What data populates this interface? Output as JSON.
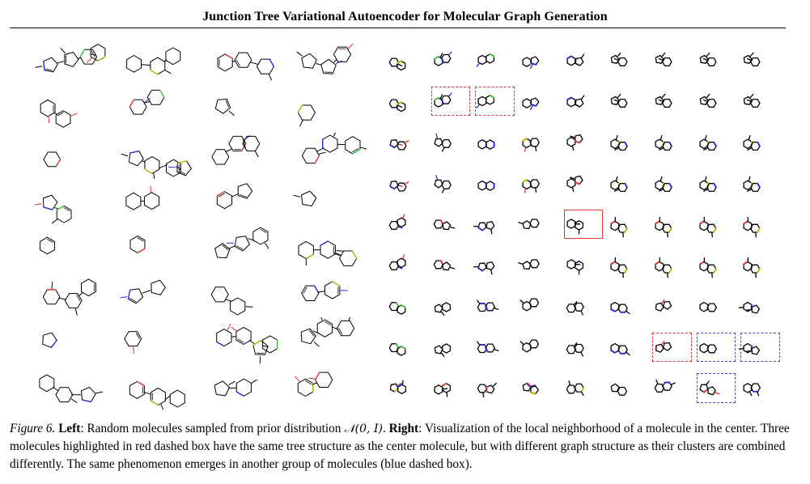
{
  "header": {
    "title": "Junction Tree Variational Autoencoder for Molecular Graph Generation"
  },
  "figure": {
    "left_panel": {
      "rows": 8,
      "cols": 4,
      "description_label": "Random molecules sampled from prior distribution"
    },
    "right_panel": {
      "rows": 9,
      "cols": 9,
      "center": [
        4,
        4
      ],
      "red_dashed": [
        [
          1,
          1
        ],
        [
          1,
          2
        ],
        [
          7,
          6
        ]
      ],
      "blue_dashed": [
        [
          7,
          7
        ],
        [
          7,
          8
        ],
        [
          8,
          7
        ]
      ]
    },
    "colors": {
      "bond": "#000000",
      "nitrogen": "#2a2ad6",
      "oxygen": "#e0342f",
      "sulfur": "#b8b400",
      "fluorine": "#3fbf3f",
      "red_box": "#e0342f",
      "blue_box": "#4a46d6"
    }
  },
  "caption": {
    "label": "Figure 6.",
    "left_title": "Left",
    "left_text": ": Random molecules sampled from prior distribution",
    "math": "𝒩(0, I)",
    "after_math": ".",
    "right_title": "Right",
    "right_text": ": Visualization of the local neighborhood of a molecule in the center. Three molecules highlighted in red dashed box have the same tree structure as the center molecule, but with different graph structure as their clusters are combined differently. The same phenomenon emerges in another group of molecules (blue dashed box)."
  }
}
